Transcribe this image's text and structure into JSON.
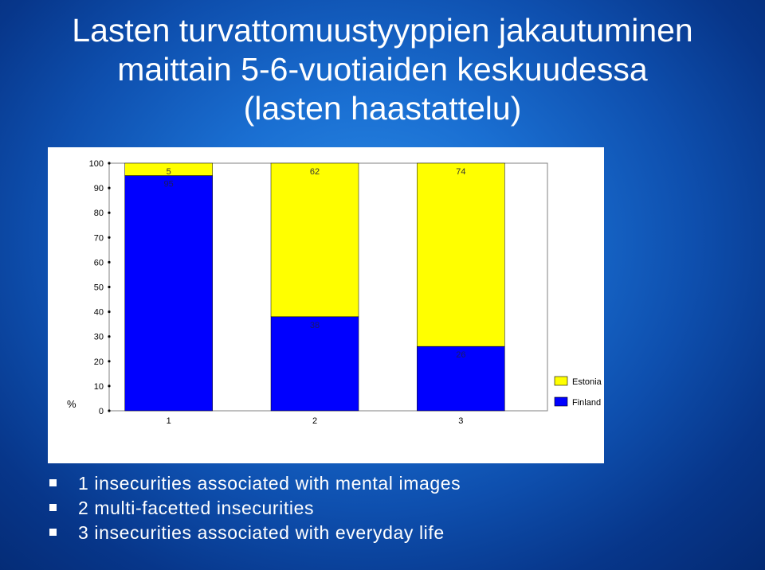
{
  "slide": {
    "title_lines": [
      "Lasten turvattomuustyyppien jakautuminen",
      "maittain 5-6-vuotiaiden keskuudessa",
      "(lasten haastattelu)"
    ],
    "bullets": [
      "1 insecurities associated with mental images",
      "2 multi-facetted insecurities",
      "3 insecurities associated with everyday life"
    ]
  },
  "chart_data": {
    "type": "bar",
    "stacked": true,
    "categories": [
      "1",
      "2",
      "3"
    ],
    "series": [
      {
        "name": "Finland",
        "color": "#0000ff",
        "values": [
          95,
          38,
          26
        ]
      },
      {
        "name": "Estonia",
        "color": "#ffff00",
        "values": [
          5,
          62,
          74
        ]
      }
    ],
    "ylabel": "%",
    "ylim": [
      0,
      100
    ],
    "yticks": [
      "0",
      "10",
      "20",
      "30",
      "40",
      "50",
      "60",
      "70",
      "80",
      "90",
      "100"
    ],
    "grid": false,
    "legend": "right",
    "legend_entries": [
      "Estonia",
      "Finland"
    ]
  }
}
